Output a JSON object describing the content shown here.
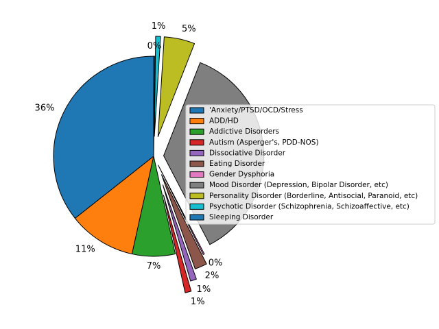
{
  "chart_data": {
    "type": "pie",
    "title": "",
    "start_angle_deg": 90,
    "direction": "counterclockwise",
    "legend_position": "center-right",
    "slices": [
      {
        "label": "'Anxiety/PTSD/OCD/Stress",
        "value": 36,
        "pct_label": "36%",
        "color": "#1f77b4",
        "explode": 0
      },
      {
        "label": "ADD/HD",
        "value": 11,
        "pct_label": "11%",
        "color": "#ff7f0e",
        "explode": 0
      },
      {
        "label": "Addictive Disorders",
        "value": 7,
        "pct_label": "7%",
        "color": "#2ca02c",
        "explode": 0
      },
      {
        "label": "Autism (Asperger's, PDD-NOS)",
        "value": 1,
        "pct_label": "1%",
        "color": "#d62728",
        "explode": 0.4
      },
      {
        "label": "Dissociative Disorder",
        "value": 1,
        "pct_label": "1%",
        "color": "#9467bd",
        "explode": 0.3
      },
      {
        "label": "Eating Disorder",
        "value": 2,
        "pct_label": "2%",
        "color": "#8c564b",
        "explode": 0.2
      },
      {
        "label": "Gender Dysphoria",
        "value": 0.2,
        "pct_label": "0%",
        "color": "#e377c2",
        "explode": 0.1
      },
      {
        "label": "Mood Disorder (Depression, Bipolar Disorder, etc)",
        "value": 36.8,
        "pct_label": "",
        "color": "#7f7f7f",
        "explode": 0.1
      },
      {
        "label": "Personality Disorder (Borderline, Antisocial, Paranoid, etc)",
        "value": 5,
        "pct_label": "5%",
        "color": "#bcbd22",
        "explode": 0.2
      },
      {
        "label": "Psychotic Disorder (Schizophrenia, Schizoaffective, etc)",
        "value": 0.8,
        "pct_label": "1%",
        "color": "#17becf",
        "explode": 0.2
      },
      {
        "label": "Sleeping Disorder",
        "value": 0.2,
        "pct_label": "0%",
        "color": "#1f77b4",
        "explode": 0
      }
    ]
  }
}
